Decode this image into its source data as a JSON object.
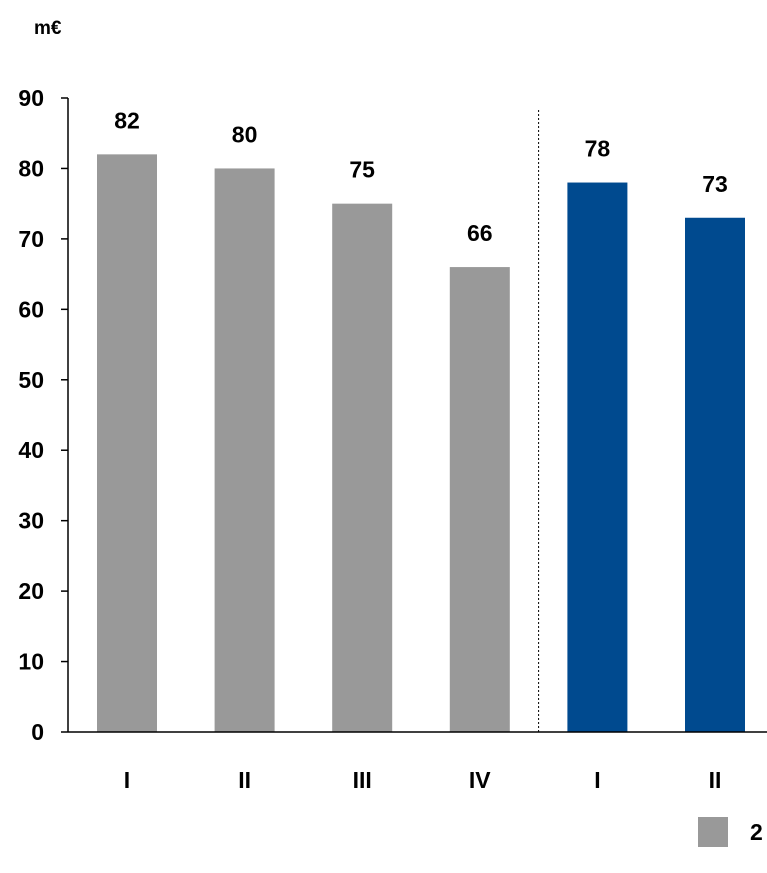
{
  "chart_data": {
    "type": "bar",
    "unit_label": "m€",
    "categories": [
      "I",
      "II",
      "III",
      "IV",
      "I",
      "II"
    ],
    "values": [
      82,
      80,
      75,
      66,
      78,
      73
    ],
    "bar_colors": [
      "#999999",
      "#999999",
      "#999999",
      "#999999",
      "#004A8F",
      "#004A8F"
    ],
    "y_ticks": [
      0,
      10,
      20,
      30,
      40,
      50,
      60,
      70,
      80,
      90
    ],
    "ylim": [
      0,
      90
    ],
    "grid": false,
    "separator_after_index": 3,
    "legend": {
      "placement": "bottom-right",
      "entries": [
        {
          "label": "2",
          "color": "#999999"
        }
      ]
    }
  }
}
